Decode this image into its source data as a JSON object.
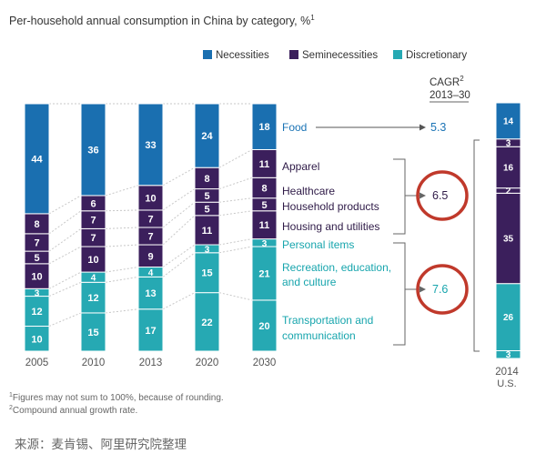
{
  "title": "Per-household annual consumption in China by category, %",
  "title_sup": "1",
  "legend": [
    {
      "label": "Necessities",
      "color": "#1a6fb0"
    },
    {
      "label": "Seminecessities",
      "color": "#3b1f5c"
    },
    {
      "label": "Discretionary",
      "color": "#26a9b3"
    }
  ],
  "chart_data": {
    "type": "bar",
    "stacked": true,
    "categories": [
      "2005",
      "2010",
      "2013",
      "2020",
      "2030"
    ],
    "series": [
      {
        "name": "Transportation and communication",
        "group": "Discretionary",
        "values": [
          10,
          15,
          17,
          22,
          20
        ]
      },
      {
        "name": "Recreation, education, and culture",
        "group": "Discretionary",
        "values": [
          12,
          12,
          13,
          15,
          21
        ]
      },
      {
        "name": "Personal items",
        "group": "Discretionary",
        "values": [
          3,
          4,
          4,
          3,
          3
        ]
      },
      {
        "name": "Housing and utilities",
        "group": "Seminecessities",
        "values": [
          10,
          10,
          9,
          11,
          11
        ]
      },
      {
        "name": "Household products",
        "group": "Seminecessities",
        "values": [
          5,
          7,
          7,
          5,
          5
        ]
      },
      {
        "name": "Healthcare",
        "group": "Seminecessities",
        "values": [
          7,
          7,
          7,
          5,
          8
        ]
      },
      {
        "name": "Apparel",
        "group": "Seminecessities",
        "values": [
          8,
          6,
          10,
          8,
          11
        ]
      },
      {
        "name": "Food",
        "group": "Necessities",
        "values": [
          44,
          36,
          33,
          24,
          18
        ]
      }
    ],
    "comparison": {
      "label": "2014",
      "sublabel": "U.S.",
      "segments": [
        {
          "group": "Discretionary",
          "value": 3
        },
        {
          "group": "Discretionary",
          "value": 26
        },
        {
          "group": "Seminecessities",
          "value": 35
        },
        {
          "group": "Seminecessities",
          "value": 2
        },
        {
          "group": "Seminecessities",
          "value": 16
        },
        {
          "group": "Seminecessities",
          "value": 3
        },
        {
          "group": "Necessities",
          "value": 14
        }
      ]
    }
  },
  "categories_right": [
    {
      "label": "Food",
      "group": "Necessities"
    },
    {
      "label": "Apparel",
      "group": "Seminecessities"
    },
    {
      "label": "Healthcare",
      "group": "Seminecessities"
    },
    {
      "label": "Household products",
      "group": "Seminecessities"
    },
    {
      "label": "Housing and utilities",
      "group": "Seminecessities"
    },
    {
      "label": "Personal items",
      "group": "Discretionary"
    },
    {
      "label": "Recreation, education,",
      "group": "Discretionary"
    },
    {
      "label": "and culture",
      "group": "Discretionary"
    },
    {
      "label": "Transportation and",
      "group": "Discretionary"
    },
    {
      "label": "communication",
      "group": "Discretionary"
    }
  ],
  "cagr": {
    "heading": "CAGR",
    "heading_sup": "2",
    "period": "2013–30",
    "values": [
      {
        "group": "Necessities",
        "value": "5.3"
      },
      {
        "group": "Seminecessities",
        "value": "6.5"
      },
      {
        "group": "Discretionary",
        "value": "7.6"
      }
    ]
  },
  "footnotes": [
    {
      "sup": "1",
      "text": "Figures may not sum to 100%, because of rounding."
    },
    {
      "sup": "2",
      "text": "Compound annual growth rate."
    }
  ],
  "source": "来源：麦肯锡、阿里研究院整理",
  "colors": {
    "necessities": "#1a6fb0",
    "seminecessities": "#3b1f5c",
    "discretionary": "#26a9b3",
    "highlight_circle": "#c0392b"
  }
}
